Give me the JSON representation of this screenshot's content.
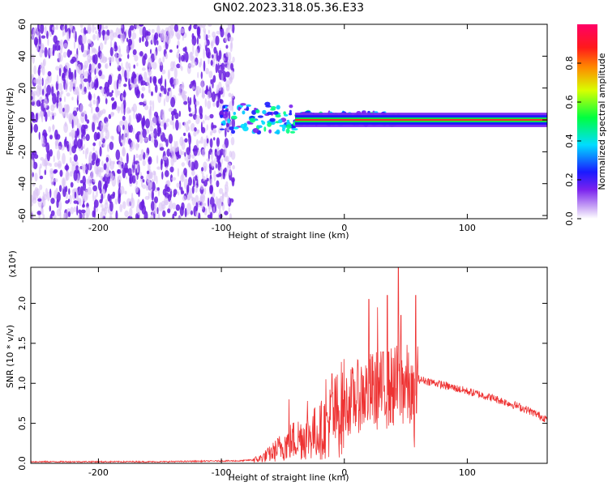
{
  "title": "GN02.2023.318.05.36.E33",
  "colors": {
    "snr_line": "#ee3333",
    "purple_dark": "#6a1fe0",
    "purple_light": "#d9c2f5"
  },
  "chart_data": [
    {
      "type": "heatmap",
      "name": "spectrogram",
      "xlabel": "Height of straight line (km)",
      "ylabel": "Frequency (Hz)",
      "xlim": [
        -255,
        165
      ],
      "ylim": [
        -62,
        60
      ],
      "xticks": [
        -200,
        -100,
        0,
        100
      ],
      "yticks": [
        60,
        40,
        20,
        0,
        -20,
        -40,
        -60
      ],
      "colorbar": {
        "label": "Normalized spectral amplitude",
        "range": [
          0.0,
          1.0
        ],
        "ticks": [
          "0.0",
          "0.2",
          "0.4",
          "0.6",
          "0.8"
        ],
        "colormap": "rainbow (white-purple-blue-cyan-green-yellow-red-magenta)"
      },
      "features": [
        {
          "x_range": [
            -255,
            -90
          ],
          "freq_range": [
            -62,
            60
          ],
          "amplitude": "low (0.0–0.2), broadband speckle"
        },
        {
          "x_range": [
            -100,
            45
          ],
          "freq_range": [
            -15,
            12
          ],
          "amplitude": "0.2–0.9, narrowband band near 0 Hz"
        },
        {
          "x_range": [
            45,
            165
          ],
          "freq_range": [
            -3,
            3
          ],
          "amplitude": "0.6–1.0, narrow line near 0 Hz"
        }
      ]
    },
    {
      "type": "line",
      "name": "snr",
      "xlabel": "Height of straight line (km)",
      "ylabel": "SNR (10 * v/v)",
      "y_multiplier": "(x10⁴)",
      "xlim": [
        -255,
        165
      ],
      "ylim": [
        0,
        2.45
      ],
      "xticks": [
        -200,
        -100,
        0,
        100
      ],
      "yticks": [
        "0.0",
        "0.5",
        "1.0",
        "1.5",
        "2.0"
      ],
      "grid": false,
      "series": [
        {
          "x": [
            -255,
            -200,
            -150,
            -100,
            -85,
            -70,
            -60,
            -50,
            -40,
            -30,
            -20,
            -10,
            0,
            10,
            20,
            30,
            40,
            50,
            57,
            60,
            70,
            80,
            90,
            100,
            110,
            120,
            130,
            140,
            150,
            165
          ],
          "values": [
            0.02,
            0.02,
            0.02,
            0.03,
            0.03,
            0.05,
            0.12,
            0.22,
            0.3,
            0.35,
            0.4,
            0.55,
            0.72,
            0.83,
            0.9,
            0.92,
            0.95,
            1.0,
            0.75,
            1.05,
            1.02,
            0.98,
            0.94,
            0.9,
            0.86,
            0.82,
            0.77,
            0.72,
            0.66,
            0.55
          ]
        }
      ],
      "spikes": [
        {
          "x": 20,
          "y": 2.05
        },
        {
          "x": 27,
          "y": 1.95
        },
        {
          "x": 35,
          "y": 2.1
        },
        {
          "x": 44,
          "y": 2.45
        },
        {
          "x": 46,
          "y": 1.85
        },
        {
          "x": 58,
          "y": 2.1
        },
        {
          "x": -15,
          "y": 1.05
        },
        {
          "x": -10,
          "y": 1.12
        },
        {
          "x": -30,
          "y": 0.78
        },
        {
          "x": -45,
          "y": 0.8
        },
        {
          "x": 57,
          "y": 0.2
        }
      ]
    }
  ]
}
